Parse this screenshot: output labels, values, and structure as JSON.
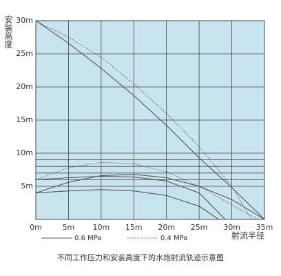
{
  "chart_data": {
    "type": "line",
    "y_label": "安装高度",
    "x_label": "射流半径",
    "caption": "不同工作压力和安装高度下的水炮射流轨迹示意图",
    "background": "#c8e4ee",
    "grid": true,
    "xlim": [
      0,
      35
    ],
    "ylim": [
      0,
      30
    ],
    "xticks": [
      {
        "value": 0,
        "label": "0m"
      },
      {
        "value": 5,
        "label": "5m"
      },
      {
        "value": 10,
        "label": "10m"
      },
      {
        "value": 15,
        "label": "15m"
      },
      {
        "value": 20,
        "label": "20m"
      },
      {
        "value": 25,
        "label": "25m"
      },
      {
        "value": 30,
        "label": "30m"
      },
      {
        "value": 35,
        "label": "35m"
      }
    ],
    "yticks": [
      {
        "value": 5,
        "label": "5m"
      },
      {
        "value": 10,
        "label": "10m"
      },
      {
        "value": 15,
        "label": "15m"
      },
      {
        "value": 20,
        "label": "20m"
      },
      {
        "value": 25,
        "label": "25m"
      },
      {
        "value": 30,
        "label": "30m"
      }
    ],
    "minor_ygrid": [
      6,
      7,
      8,
      9
    ],
    "series": [
      {
        "name": "0.6 MPa",
        "color": "#555555",
        "dash": false,
        "curves": [
          {
            "x": [
              0,
              5,
              10,
              15,
              20,
              25,
              30,
              35
            ],
            "y": [
              30,
              26.6,
              22.8,
              18.7,
              14.2,
              9.3,
              4.8,
              0
            ]
          },
          {
            "x": [
              0,
              5,
              10,
              15,
              20,
              25,
              30,
              35
            ],
            "y": [
              4,
              5.6,
              6.6,
              6.8,
              6.3,
              5,
              3,
              0
            ]
          },
          {
            "x": [
              0,
              5,
              10,
              15,
              20,
              25,
              29
            ],
            "y": [
              6,
              6.3,
              6.5,
              6.4,
              5.8,
              4,
              0
            ]
          },
          {
            "x": [
              0,
              5,
              10,
              15,
              20,
              25,
              28
            ],
            "y": [
              4,
              4.3,
              4.5,
              4.3,
              3.6,
              2,
              0
            ]
          }
        ]
      },
      {
        "name": "0.4 MPa",
        "color": "#555555",
        "dash": true,
        "curves": [
          {
            "x": [
              0,
              5,
              10,
              15,
              20,
              25,
              30,
              33
            ],
            "y": [
              30,
              27.5,
              24.5,
              20.5,
              16,
              11,
              5,
              0
            ]
          },
          {
            "x": [
              0,
              5,
              10,
              15,
              20,
              25,
              30,
              34
            ],
            "y": [
              6,
              7.8,
              8.6,
              8.4,
              7.2,
              5,
              2.2,
              0
            ]
          }
        ]
      }
    ]
  }
}
